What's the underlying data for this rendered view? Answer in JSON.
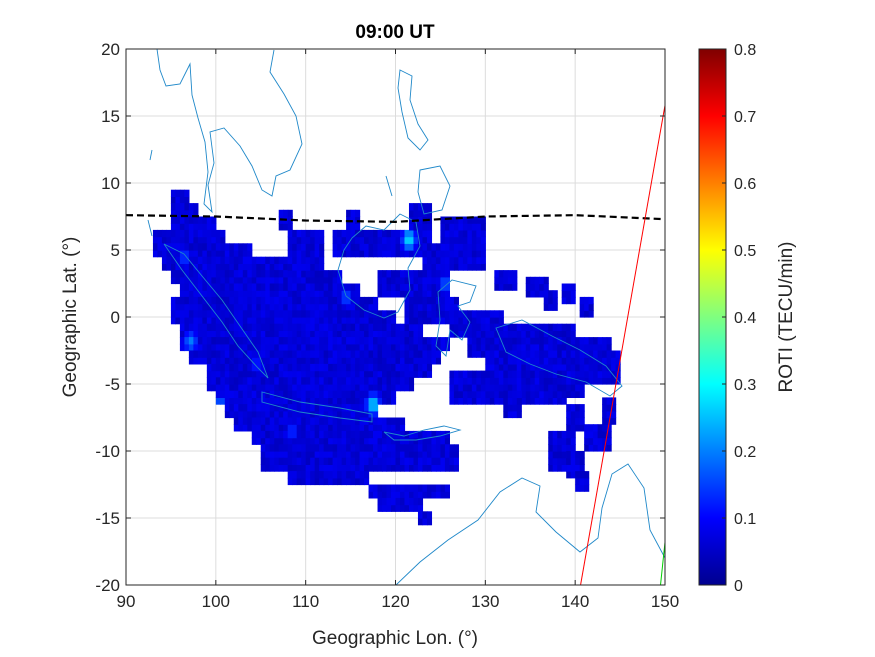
{
  "chart_data": {
    "type": "heatmap",
    "title": "09:00 UT",
    "xlabel": "Geographic Lon. (°)",
    "ylabel": "Geographic Lat. (°)",
    "xlim": [
      90,
      150
    ],
    "ylim": [
      -20,
      20
    ],
    "xticks": [
      "90",
      "100",
      "110",
      "120",
      "130",
      "140",
      "150"
    ],
    "yticks": [
      "20",
      "15",
      "10",
      "5",
      "0",
      "-5",
      "-10",
      "-15",
      "-20"
    ],
    "grid": true,
    "colorbar": {
      "label": "ROTI (TECU/min)",
      "range": [
        0,
        0.8
      ],
      "ticks": [
        "0",
        "0.1",
        "0.2",
        "0.3",
        "0.4",
        "0.5",
        "0.6",
        "0.7",
        "0.8"
      ],
      "colormap": "jet"
    },
    "magnetic_equator": {
      "style": "dashed",
      "color": "#000000",
      "points": [
        [
          90,
          7.6
        ],
        [
          100,
          7.5
        ],
        [
          110,
          7.2
        ],
        [
          120,
          7.1
        ],
        [
          130,
          7.5
        ],
        [
          140,
          7.6
        ],
        [
          150,
          7.3
        ]
      ]
    },
    "lines": [
      {
        "color": "#ff0000",
        "points": [
          [
            140.6,
            -20
          ],
          [
            150,
            15.8
          ]
        ]
      },
      {
        "color": "#00cc00",
        "points": [
          [
            149.5,
            -20
          ],
          [
            150,
            -16.8
          ]
        ]
      }
    ],
    "roti_background": 0.07,
    "roti_hotspots": [
      {
        "lon": 117.5,
        "lat": -6.5,
        "roti": 0.27
      },
      {
        "lon": 121.5,
        "lat": 5.8,
        "roti": 0.28
      },
      {
        "lon": 97.2,
        "lat": -1.8,
        "roti": 0.2
      },
      {
        "lon": 100.5,
        "lat": -6.5,
        "roti": 0.18
      },
      {
        "lon": 114.5,
        "lat": 1.5,
        "roti": 0.16
      },
      {
        "lon": 125.5,
        "lat": 2.5,
        "roti": 0.17
      },
      {
        "lon": 96.5,
        "lat": 4.5,
        "roti": 0.15
      },
      {
        "lon": 108.5,
        "lat": -8.5,
        "roti": 0.14
      },
      {
        "lon": 104.5,
        "lat": -3.5,
        "roti": 0.13
      }
    ],
    "coverage_regions": [
      {
        "lat": [
          8.5,
          9.5
        ],
        "lon": [
          95,
          97
        ]
      },
      {
        "lat": [
          7.5,
          8.5
        ],
        "lon": [
          95,
          98
        ]
      },
      {
        "lat": [
          6.5,
          7.5
        ],
        "lon": [
          95,
          100
        ]
      },
      {
        "lat": [
          5.5,
          6.5
        ],
        "lon": [
          93,
          101
        ]
      },
      {
        "lat": [
          4.5,
          5.5
        ],
        "lon": [
          93,
          104
        ]
      },
      {
        "lat": [
          3.5,
          4.5
        ],
        "lon": [
          94,
          110
        ]
      },
      {
        "lat": [
          2.5,
          3.5
        ],
        "lon": [
          95,
          114
        ]
      },
      {
        "lat": [
          1.5,
          2.5
        ],
        "lon": [
          96,
          116
        ]
      },
      {
        "lat": [
          0.5,
          1.5
        ],
        "lon": [
          95,
          118
        ]
      },
      {
        "lat": [
          -0.5,
          0.5
        ],
        "lon": [
          95,
          120
        ]
      },
      {
        "lat": [
          -1.5,
          -0.5
        ],
        "lon": [
          96,
          123
        ]
      },
      {
        "lat": [
          -2.5,
          -1.5
        ],
        "lon": [
          96,
          126
        ]
      },
      {
        "lat": [
          -3.5,
          -2.5
        ],
        "lon": [
          97,
          125
        ]
      },
      {
        "lat": [
          -4.5,
          -3.5
        ],
        "lon": [
          99,
          124
        ]
      },
      {
        "lat": [
          -5.5,
          -4.5
        ],
        "lon": [
          99,
          122
        ]
      },
      {
        "lat": [
          -6.5,
          -5.5
        ],
        "lon": [
          100,
          120
        ]
      },
      {
        "lat": [
          -7.5,
          -6.5
        ],
        "lon": [
          101,
          118
        ]
      },
      {
        "lat": [
          -8.5,
          -7.5
        ],
        "lon": [
          102,
          121
        ]
      },
      {
        "lat": [
          -9.5,
          -8.5
        ],
        "lon": [
          104,
          126
        ]
      },
      {
        "lat": [
          -10.5,
          -9.5
        ],
        "lon": [
          105,
          127
        ]
      },
      {
        "lat": [
          -11.5,
          -10.5
        ],
        "lon": [
          105,
          127
        ]
      },
      {
        "lat": [
          -12.5,
          -11.5
        ],
        "lon": [
          108,
          117
        ]
      },
      {
        "lat": [
          -13.5,
          -12.5
        ],
        "lon": [
          117,
          126
        ]
      },
      {
        "lat": [
          -14.5,
          -13.5
        ],
        "lon": [
          118,
          123
        ]
      },
      {
        "lat": [
          -15.5,
          -14.5
        ],
        "lon": [
          122.5,
          124
        ]
      },
      {
        "lat": [
          6.5,
          8
        ],
        "lon": [
          107,
          108.5
        ]
      },
      {
        "lat": [
          6.5,
          8
        ],
        "lon": [
          114.5,
          116
        ]
      },
      {
        "lat": [
          3.5,
          6.5
        ],
        "lon": [
          108,
          112
        ]
      },
      {
        "lat": [
          4.5,
          6.5
        ],
        "lon": [
          113,
          124
        ]
      },
      {
        "lat": [
          6.5,
          8.5
        ],
        "lon": [
          121.5,
          124
        ]
      },
      {
        "lat": [
          3.5,
          5.5
        ],
        "lon": [
          123,
          130
        ]
      },
      {
        "lat": [
          1.5,
          3.5
        ],
        "lon": [
          118,
          126
        ]
      },
      {
        "lat": [
          5.5,
          7.5
        ],
        "lon": [
          125,
          130
        ]
      },
      {
        "lat": [
          -0.5,
          1.5
        ],
        "lon": [
          121,
          127
        ]
      },
      {
        "lat": [
          -1.5,
          0.5
        ],
        "lon": [
          126,
          132
        ]
      },
      {
        "lat": [
          -3,
          -0.5
        ],
        "lon": [
          128,
          140
        ]
      },
      {
        "lat": [
          -3.5,
          -1.5
        ],
        "lon": [
          136,
          144
        ]
      },
      {
        "lat": [
          -5,
          -2.5
        ],
        "lon": [
          130,
          145
        ]
      },
      {
        "lat": [
          -6.5,
          -4
        ],
        "lon": [
          126,
          139
        ]
      },
      {
        "lat": [
          -6,
          -4.5
        ],
        "lon": [
          139,
          141
        ]
      },
      {
        "lat": [
          -7.5,
          -5.5
        ],
        "lon": [
          132,
          134
        ]
      },
      {
        "lat": [
          2,
          3.5
        ],
        "lon": [
          131,
          133.5
        ]
      },
      {
        "lat": [
          1.5,
          3
        ],
        "lon": [
          134.5,
          137
        ]
      },
      {
        "lat": [
          0.5,
          2
        ],
        "lon": [
          136.5,
          138
        ]
      },
      {
        "lat": [
          1,
          2.5
        ],
        "lon": [
          138.5,
          140
        ]
      },
      {
        "lat": [
          0,
          1.5
        ],
        "lon": [
          140.5,
          142
        ]
      },
      {
        "lat": [
          -8.5,
          -6.5
        ],
        "lon": [
          139,
          141
        ]
      },
      {
        "lat": [
          -10,
          -8
        ],
        "lon": [
          141,
          144
        ]
      },
      {
        "lat": [
          -11.5,
          -8.5
        ],
        "lon": [
          137,
          140
        ]
      },
      {
        "lat": [
          -12,
          -10
        ],
        "lon": [
          139,
          141
        ]
      },
      {
        "lat": [
          -13,
          -11.5
        ],
        "lon": [
          140,
          141.5
        ]
      },
      {
        "lat": [
          -8,
          -6
        ],
        "lon": [
          143,
          144.5
        ]
      }
    ]
  }
}
